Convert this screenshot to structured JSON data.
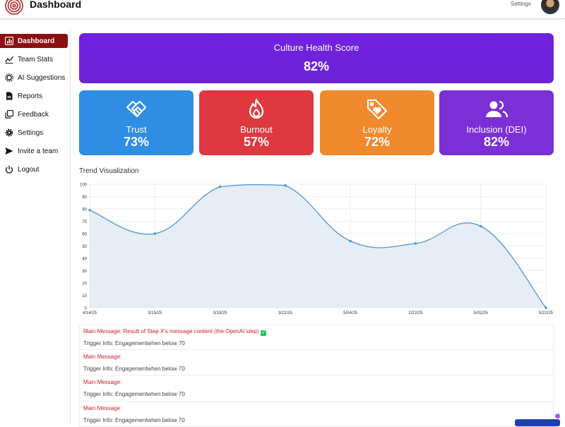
{
  "header": {
    "app_title": "Dashboard",
    "settings_label": "Settings"
  },
  "sidebar": {
    "items": [
      {
        "label": "Dashboard",
        "icon": "bar-chart-icon",
        "active": true
      },
      {
        "label": "Team Stats",
        "icon": "trend-line-icon",
        "active": false
      },
      {
        "label": "AI Suggestions",
        "icon": "ai-gear-icon",
        "active": false
      },
      {
        "label": "Reports",
        "icon": "document-icon",
        "active": false
      },
      {
        "label": "Feedback",
        "icon": "copy-icon",
        "active": false
      },
      {
        "label": "Settings",
        "icon": "gear-icon",
        "active": false
      },
      {
        "label": "Invite a team",
        "icon": "send-icon",
        "active": false
      },
      {
        "label": "Logout",
        "icon": "power-icon",
        "active": false
      }
    ]
  },
  "score": {
    "title": "Culture Health Score",
    "value": "82%"
  },
  "metrics": [
    {
      "label": "Trust",
      "value": "73%",
      "icon": "handshake-icon",
      "color": "#2f8de4"
    },
    {
      "label": "Burnout",
      "value": "57%",
      "icon": "fire-icon",
      "color": "#e0383f"
    },
    {
      "label": "Loyalty",
      "value": "72%",
      "icon": "heart-tag-icon",
      "color": "#f08a2c"
    },
    {
      "label": "Inclusion (DEI)",
      "value": "82%",
      "icon": "users-icon",
      "color": "#7c2fd6"
    }
  ],
  "chart_title": "Trend Visualization",
  "chart_data": {
    "type": "area",
    "categories": [
      "4/14/25",
      "3/15/25",
      "3/19/25",
      "3/22/25",
      "5/04/25",
      "2/22/25",
      "5/02/25",
      "5/22/25"
    ],
    "values": [
      79,
      60,
      98,
      99,
      54,
      52,
      66,
      0
    ],
    "ylim": [
      0,
      100
    ],
    "yticks": [
      0,
      10,
      20,
      30,
      40,
      50,
      60,
      70,
      80,
      90,
      100
    ],
    "grid": true,
    "line_color": "#4d96d9",
    "fill_color": "#e3ebf3"
  },
  "messages": [
    {
      "main": "Main Message: Result of Step X's message content (the OpenAI step)",
      "has_check": true,
      "trigger": "Trigger Info: Engagementwhen below 70"
    },
    {
      "main": "Main Message:",
      "has_check": false,
      "trigger": "Trigger Info: Engagementwhen below 70"
    },
    {
      "main": "Main Message:",
      "has_check": false,
      "trigger": "Trigger Info: Engagementwhen below 70"
    },
    {
      "main": "Main Message:",
      "has_check": false,
      "trigger": "Trigger Info: Engagementwhen below 70"
    }
  ]
}
